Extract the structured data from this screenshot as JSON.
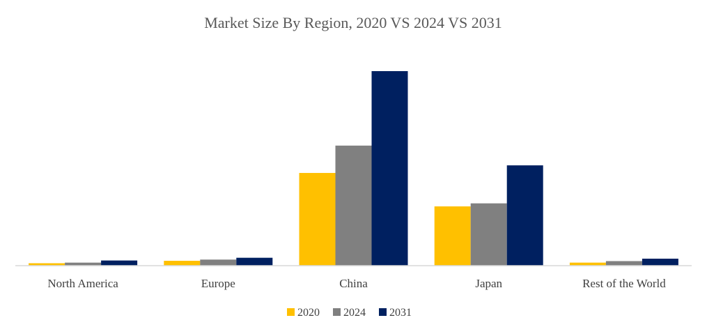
{
  "chart_data": {
    "type": "bar",
    "title": "Market Size By Region, 2020 VS 2024 VS 2031",
    "categories": [
      "North America",
      "Europe",
      "China",
      "Japan",
      "Rest of the World"
    ],
    "series": [
      {
        "name": "2020",
        "color": "#FFC000",
        "values": [
          0.8,
          1.6,
          30.5,
          19.5,
          1.0
        ]
      },
      {
        "name": "2024",
        "color": "#808080",
        "values": [
          1.0,
          2.0,
          39.5,
          20.5,
          1.5
        ]
      },
      {
        "name": "2031",
        "color": "#002060",
        "values": [
          1.7,
          2.6,
          64.0,
          33.0,
          2.3
        ]
      }
    ],
    "xlabel": "",
    "ylabel": "",
    "ylim": [
      0,
      64
    ],
    "grid": false,
    "legend": "bottom-center"
  }
}
